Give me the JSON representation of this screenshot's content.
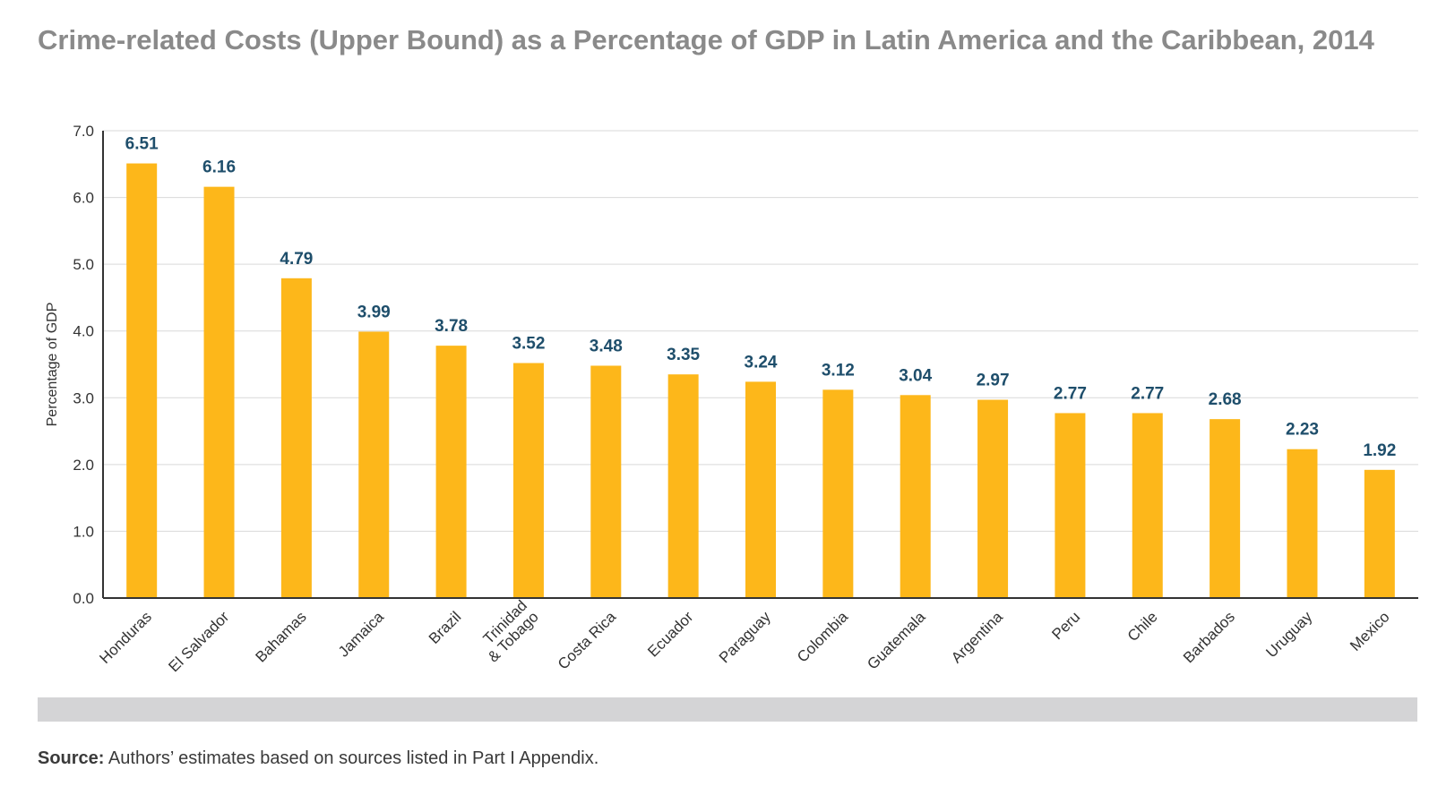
{
  "title": "Crime-related Costs (Upper Bound) as a Percentage of GDP in Latin America and the Caribbean, 2014",
  "source": {
    "label": "Source:",
    "text": " Authors’ estimates based on sources listed in Part I Appendix."
  },
  "colors": {
    "bar": "#FDB71A",
    "value_label": "#1E4E6B",
    "grid": "#d9d9d9",
    "axis": "#333333"
  },
  "chart_data": {
    "type": "bar",
    "title": "Crime-related Costs (Upper Bound) as a Percentage of GDP in Latin America and the Caribbean, 2014",
    "xlabel": "",
    "ylabel": "Percentage of GDP",
    "ylim": [
      0,
      7
    ],
    "yticks": [
      "0.0",
      "1.0",
      "2.0",
      "3.0",
      "4.0",
      "5.0",
      "6.0",
      "7.0"
    ],
    "grid": true,
    "categories": [
      "Honduras",
      "El Salvador",
      "Bahamas",
      "Jamaica",
      "Brazil",
      "Trinidad\n& Tobago",
      "Costa Rica",
      "Ecuador",
      "Paraguay",
      "Colombia",
      "Guatemala",
      "Argentina",
      "Peru",
      "Chile",
      "Barbados",
      "Uruguay",
      "Mexico"
    ],
    "values": [
      6.51,
      6.16,
      4.79,
      3.99,
      3.78,
      3.52,
      3.48,
      3.35,
      3.24,
      3.12,
      3.04,
      2.97,
      2.77,
      2.77,
      2.68,
      2.23,
      1.92
    ],
    "value_labels": [
      "6.51",
      "6.16",
      "4.79",
      "3.99",
      "3.78",
      "3.52",
      "3.48",
      "3.35",
      "3.24",
      "3.12",
      "3.04",
      "2.97",
      "2.77",
      "2.77",
      "2.68",
      "2.23",
      "1.92"
    ]
  }
}
